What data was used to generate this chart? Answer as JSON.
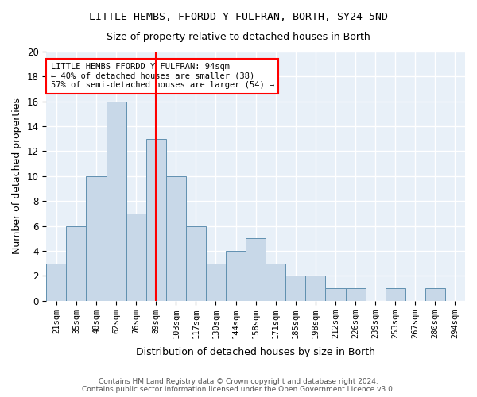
{
  "title1": "LITTLE HEMBS, FFORDD Y FULFRAN, BORTH, SY24 5ND",
  "title2": "Size of property relative to detached houses in Borth",
  "xlabel": "Distribution of detached houses by size in Borth",
  "ylabel": "Number of detached properties",
  "bin_labels": [
    "21sqm",
    "35sqm",
    "48sqm",
    "62sqm",
    "76sqm",
    "89sqm",
    "103sqm",
    "117sqm",
    "130sqm",
    "144sqm",
    "158sqm",
    "171sqm",
    "185sqm",
    "198sqm",
    "212sqm",
    "226sqm",
    "239sqm",
    "253sqm",
    "267sqm",
    "280sqm",
    "294sqm"
  ],
  "bar_values": [
    3,
    6,
    10,
    16,
    7,
    13,
    10,
    6,
    3,
    4,
    5,
    3,
    2,
    2,
    1,
    1,
    0,
    1,
    0,
    1,
    0
  ],
  "ylim": [
    0,
    20
  ],
  "yticks": [
    0,
    2,
    4,
    6,
    8,
    10,
    12,
    14,
    16,
    18,
    20
  ],
  "bar_color": "#c8d8e8",
  "bar_edge_color": "#6090b0",
  "annotation_text": "LITTLE HEMBS FFORDD Y FULFRAN: 94sqm\n← 40% of detached houses are smaller (38)\n57% of semi-detached houses are larger (54) →",
  "annotation_box_color": "white",
  "annotation_box_edge": "red",
  "vline_color": "red",
  "footer": "Contains HM Land Registry data © Crown copyright and database right 2024.\nContains public sector information licensed under the Open Government Licence v3.0.",
  "background_color": "#e8f0f8",
  "grid_color": "white"
}
